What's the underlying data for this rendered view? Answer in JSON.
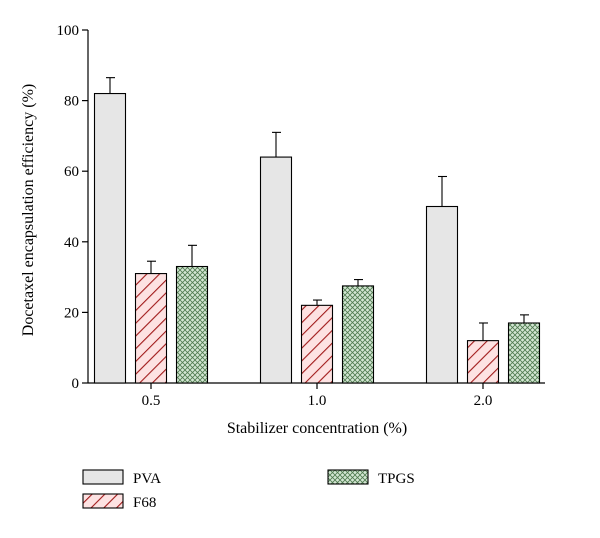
{
  "chart_data": {
    "type": "bar",
    "title": "",
    "xlabel": "Stabilizer concentration (%)",
    "ylabel": "Docetaxel encapsulation efficiency (%)",
    "ylim": [
      0,
      100
    ],
    "yticks": [
      0,
      20,
      40,
      60,
      80,
      100
    ],
    "categories": [
      "0.5",
      "1.0",
      "2.0"
    ],
    "series": [
      {
        "name": "PVA",
        "values": [
          82,
          64,
          50
        ],
        "errors": [
          4.5,
          7,
          8.5
        ],
        "fill": "#e6e6e6",
        "pattern": "solid"
      },
      {
        "name": "F68",
        "values": [
          31,
          22,
          12
        ],
        "errors": [
          3.5,
          1.5,
          5
        ],
        "fill": "#fde2e2",
        "pattern": "diagonal-hatch"
      },
      {
        "name": "TPGS",
        "values": [
          33,
          27.5,
          17
        ],
        "errors": [
          6,
          1.8,
          2.3
        ],
        "fill": "#d3e6d3",
        "pattern": "crosshatch"
      }
    ],
    "grid": false,
    "legend": {
      "placement": "bottom"
    }
  }
}
